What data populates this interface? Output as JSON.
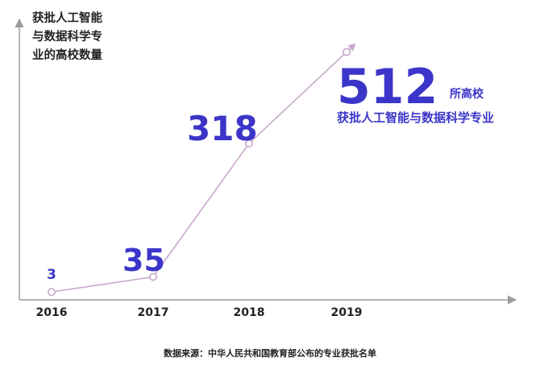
{
  "colors": {
    "accent": "#3b35c9",
    "line": "#c8a8cc",
    "axis": "#9a9a9a",
    "text": "#222222"
  },
  "chart_data": {
    "type": "line",
    "ylabel_lines": [
      "获批人工智能",
      "与数据科学专",
      "业的高校数量"
    ],
    "categories": [
      "2016",
      "2017",
      "2018",
      "2019"
    ],
    "series": [
      {
        "values": [
          3,
          35,
          318,
          512
        ]
      }
    ],
    "data_labels": [
      "3",
      "35",
      "318",
      "512"
    ],
    "headline_unit": "所高校",
    "headline_desc": "获批人工智能与数据科学专业",
    "source": "数据来源：中华人民共和国教育部公布的专业获批名单",
    "ylim": [
      0,
      600
    ],
    "grid": false
  }
}
